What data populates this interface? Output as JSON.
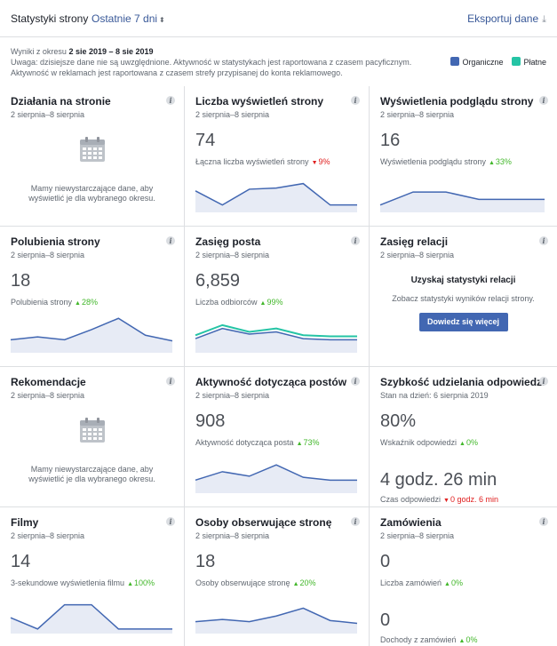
{
  "header": {
    "title": "Statystyki strony",
    "range": "Ostatnie 7 dni",
    "export": "Eksportuj dane"
  },
  "notice": {
    "line1_prefix": "Wyniki z okresu ",
    "line1_range": "2 sie 2019 – 8 sie 2019",
    "line2": "Uwaga: dzisiejsze dane nie są uwzględnione. Aktywność w statystykach jest raportowana z czasem pacyficznym.",
    "line3": "Aktywność w reklamach jest raportowana z czasem strefy przypisanej do konta reklamowego."
  },
  "legend": {
    "organic": {
      "label": "Organiczne",
      "color": "#4267b2"
    },
    "paid": {
      "label": "Płatne",
      "color": "#25c4a5"
    }
  },
  "cards": {
    "actions": {
      "title": "Działania na stronie",
      "date": "2 sierpnia–8 sierpnia",
      "nodata": [
        "Mamy niewystarczające dane, aby",
        "wyświetlić je dla wybranego okresu."
      ]
    },
    "views": {
      "title": "Liczba wyświetleń strony",
      "date": "2 sierpnia–8 sierpnia",
      "value": "74",
      "sub": "Łączna liczba wyświetleń strony",
      "delta": "9%",
      "trend": "down",
      "series": [
        35,
        10,
        38,
        40,
        48,
        10,
        10
      ]
    },
    "previews": {
      "title": "Wyświetlenia podglądu strony",
      "date": "2 sierpnia–8 sierpnia",
      "value": "16",
      "sub": "Wyświetlenia podglądu strony",
      "delta": "33%",
      "trend": "up",
      "series": [
        10,
        33,
        33,
        20,
        20,
        20
      ]
    },
    "likes": {
      "title": "Polubienia strony",
      "date": "2 sierpnia–8 sierpnia",
      "value": "18",
      "sub": "Polubienia strony",
      "delta": "28%",
      "trend": "up",
      "series": [
        20,
        25,
        20,
        38,
        58,
        28,
        18
      ]
    },
    "reach": {
      "title": "Zasięg posta",
      "date": "2 sierpnia–8 sierpnia",
      "value": "6,859",
      "sub": "Liczba odbiorców",
      "delta": "99%",
      "trend": "up",
      "series": [
        22,
        40,
        30,
        34,
        22,
        20,
        20
      ],
      "series_paid": [
        28,
        46,
        34,
        40,
        28,
        26,
        26
      ]
    },
    "stories": {
      "title": "Zasięg relacji",
      "date": "2 sierpnia–8 sierpnia",
      "head": "Uzyskaj statystyki relacji",
      "sub": "Zobacz statystyki wyników relacji strony.",
      "button": "Dowiedz się więcej"
    },
    "recommend": {
      "title": "Rekomendacje",
      "date": "2 sierpnia–8 sierpnia",
      "nodata": [
        "Mamy niewystarczające dane, aby",
        "wyświetlić je dla wybranego okresu."
      ]
    },
    "engagement": {
      "title": "Aktywność dotycząca postów",
      "date": "2 sierpnia–8 sierpnia",
      "value": "908",
      "sub": "Aktywność dotycząca posta",
      "delta": "73%",
      "trend": "up",
      "series": [
        20,
        35,
        27,
        47,
        25,
        20,
        20
      ]
    },
    "response": {
      "title": "Szybkość udzielania odpowiedzi",
      "date": "Stan na dzień: 6 sierpnia 2019",
      "value": "80%",
      "sub": "Wskaźnik odpowiedzi",
      "delta": "0%",
      "trend": "up",
      "value2": "4 godz. 26 min",
      "sub2": "Czas odpowiedzi",
      "delta2": "0 godz. 6 min",
      "trend2": "down"
    },
    "videos": {
      "title": "Filmy",
      "date": "2 sierpnia–8 sierpnia",
      "value": "14",
      "sub": "3-sekundowe wyświetlenia filmu",
      "delta": "100%",
      "trend": "up",
      "series": [
        25,
        5,
        48,
        48,
        5,
        5,
        5
      ]
    },
    "followers": {
      "title": "Osoby obserwujące stronę",
      "date": "2 sierpnia–8 sierpnia",
      "value": "18",
      "sub": "Osoby obserwujące stronę",
      "delta": "20%",
      "trend": "up",
      "series": [
        18,
        22,
        18,
        28,
        42,
        20,
        15
      ]
    },
    "orders": {
      "title": "Zamówienia",
      "date": "2 sierpnia–8 sierpnia",
      "value": "0",
      "sub": "Liczba zamówień",
      "delta": "0%",
      "trend": "up",
      "value2": "0",
      "sub2": "Dochody z zamówień",
      "delta2": "0%",
      "trend2": "up"
    }
  }
}
